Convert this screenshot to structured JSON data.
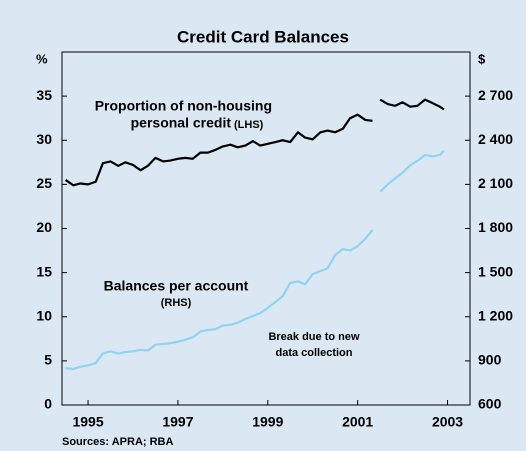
{
  "chart_data": {
    "type": "line",
    "title": "Credit Card Balances",
    "y_label": "%",
    "y2_label": "$",
    "source": "Sources: APRA; RBA",
    "annotations": [
      "Proportion of non-housing",
      "personal credit",
      "(LHS)",
      "Balances per account",
      "(RHS)",
      "Break due to new",
      "data collection"
    ],
    "xlim": [
      1994.42,
      2003.5
    ],
    "xticks": [
      1995,
      1997,
      1999,
      2001,
      2003
    ],
    "ylim": [
      0,
      40
    ],
    "yticks": [
      0,
      5,
      10,
      15,
      20,
      25,
      30,
      35
    ],
    "y2lim": [
      600,
      3000
    ],
    "y2ticks": [
      600,
      900,
      {
        "value": 1200,
        "label": "1 200"
      },
      {
        "value": 1500,
        "label": "1 500"
      },
      {
        "value": 1800,
        "label": "1 800"
      },
      {
        "value": 2100,
        "label": "2 100"
      },
      {
        "value": 2400,
        "label": "2 400"
      },
      {
        "value": 2700,
        "label": "2 700"
      }
    ],
    "x": [
      1994.5,
      1994.67,
      1994.83,
      1995.0,
      1995.17,
      1995.33,
      1995.5,
      1995.67,
      1995.83,
      1996.0,
      1996.17,
      1996.33,
      1996.5,
      1996.67,
      1996.83,
      1997.0,
      1997.17,
      1997.33,
      1997.5,
      1997.67,
      1997.83,
      1998.0,
      1998.17,
      1998.33,
      1998.5,
      1998.67,
      1998.83,
      1999.0,
      1999.17,
      1999.33,
      1999.5,
      1999.67,
      1999.83,
      2000.0,
      2000.17,
      2000.33,
      2000.5,
      2000.67,
      2000.83,
      2001.0,
      2001.17,
      2001.33,
      2001.42,
      2001.5,
      2001.67,
      2001.83,
      2002.0,
      2002.17,
      2002.33,
      2002.5,
      2002.67,
      2002.83,
      2002.92
    ],
    "series": [
      {
        "color": "#000000",
        "axis": "y",
        "values": [
          25.5,
          24.9,
          25.1,
          25.0,
          25.3,
          27.4,
          27.6,
          27.1,
          27.5,
          27.2,
          26.6,
          27.1,
          28.0,
          27.6,
          27.7,
          27.9,
          28.0,
          27.9,
          28.6,
          28.6,
          28.9,
          29.3,
          29.5,
          29.2,
          29.4,
          29.9,
          29.4,
          29.6,
          29.8,
          30.0,
          29.8,
          30.9,
          30.3,
          30.1,
          30.9,
          31.1,
          30.9,
          31.3,
          32.5,
          32.9,
          32.3,
          32.2,
          null,
          34.6,
          34.1,
          33.9,
          34.3,
          33.8,
          33.9,
          34.6,
          34.2,
          33.8,
          33.5
        ]
      },
      {
        "color": "#8fd3f2",
        "axis": "y2",
        "values": [
          850,
          845,
          860,
          870,
          885,
          950,
          965,
          950,
          960,
          965,
          975,
          970,
          1010,
          1015,
          1020,
          1030,
          1045,
          1060,
          1100,
          1110,
          1115,
          1140,
          1145,
          1160,
          1185,
          1205,
          1225,
          1260,
          1300,
          1340,
          1430,
          1440,
          1420,
          1490,
          1510,
          1530,
          1620,
          1660,
          1650,
          1680,
          1730,
          1790,
          null,
          2050,
          2100,
          2140,
          2180,
          2230,
          2260,
          2300,
          2290,
          2300,
          2330
        ]
      }
    ]
  }
}
